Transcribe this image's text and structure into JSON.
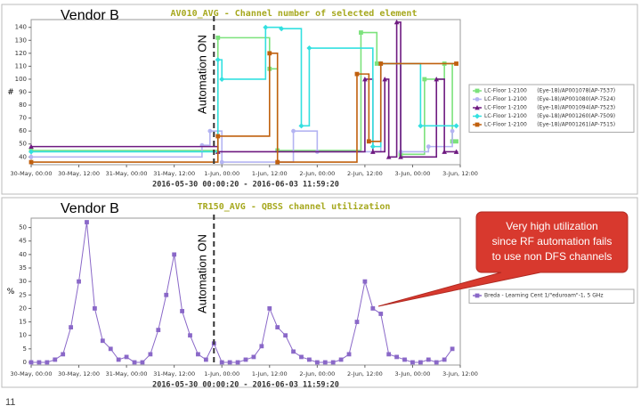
{
  "chart_data": [
    {
      "type": "line",
      "step": true,
      "title": "AV010_AVG - Channel number of selected element",
      "vendor": "Vendor B",
      "marker_label": "Automation ON",
      "marker_x": "31-May, 22:00",
      "xlabel": "2016-05-30 00:00:20 - 2016-06-03 11:59:20",
      "ylabel": "#",
      "xlim": [
        "30-May, 00:00",
        "3-Jun, 12:00"
      ],
      "xticks": [
        "30-May, 00:00",
        "30-May, 12:00",
        "31-May, 00:00",
        "31-May, 12:00",
        "1-Jun, 00:00",
        "1-Jun, 12:00",
        "2-Jun, 00:00",
        "2-Jun, 12:00",
        "3-Jun, 00:00",
        "3-Jun, 12:00"
      ],
      "ylim": [
        34,
        146
      ],
      "yticks": [
        40,
        50,
        60,
        70,
        80,
        90,
        100,
        110,
        120,
        130,
        140
      ],
      "grid": false,
      "series": [
        {
          "name": "LC-Floor 1-2100      (Eye-18)/AP001078(AP-7537)",
          "color": "#7ce27c",
          "marker": "square",
          "x": [
            "30-May, 00:00",
            "31-May, 23:00",
            "1-Jun, 12:00",
            "1-Jun, 14:00",
            "2-Jun, 11:00",
            "2-Jun, 15:00",
            "2-Jun, 21:00",
            "3-Jun, 03:00",
            "3-Jun, 08:00",
            "3-Jun, 10:00",
            "3-Jun, 11:00"
          ],
          "values": [
            45,
            132,
            108,
            45,
            136,
            112,
            42,
            100,
            112,
            52,
            52
          ]
        },
        {
          "name": "LC-Floor 1-2100      (Eye-18)/AP001080(AP-7524)",
          "color": "#b4b4f2",
          "marker": "circle",
          "x": [
            "30-May, 00:00",
            "31-May, 19:00",
            "31-May, 21:00",
            "1-Jun, 00:00",
            "1-Jun, 18:00",
            "2-Jun, 00:00",
            "2-Jun, 16:00",
            "2-Jun, 21:00",
            "3-Jun, 04:00",
            "3-Jun, 10:00"
          ],
          "values": [
            40,
            49,
            60,
            36,
            60,
            44,
            112,
            44,
            48,
            60
          ]
        },
        {
          "name": "LC-Floor 1-2100      (Eye-18)/AP001094(AP-7523)",
          "color": "#6e1a80",
          "marker": "triangle",
          "x": [
            "30-May, 00:00",
            "31-May, 23:00",
            "2-Jun, 12:00",
            "2-Jun, 14:00",
            "2-Jun, 17:00",
            "2-Jun, 18:00",
            "2-Jun, 20:00",
            "2-Jun, 21:00",
            "3-Jun, 06:00",
            "3-Jun, 08:00",
            "3-Jun, 11:00"
          ],
          "values": [
            48,
            44,
            100,
            44,
            100,
            40,
            144,
            40,
            100,
            44,
            44
          ]
        },
        {
          "name": "LC-Floor 1-2100      (Eye-18)/AP001260(AP-7509)",
          "color": "#33e0e0",
          "marker": "diamond",
          "x": [
            "30-May, 00:00",
            "31-May, 23:00",
            "1-Jun, 00:00",
            "1-Jun, 11:00",
            "1-Jun, 15:00",
            "1-Jun, 20:00",
            "1-Jun, 22:00",
            "2-Jun, 14:00",
            "2-Jun, 16:00",
            "3-Jun, 02:00",
            "3-Jun, 11:00"
          ],
          "values": [
            44,
            115,
            100,
            140,
            139,
            64,
            124,
            48,
            112,
            64,
            64
          ]
        },
        {
          "name": "LC-Floor 1-2100      (Eye-18)/AP001261(AP-7515)",
          "color": "#c0600e",
          "marker": "square",
          "x": [
            "30-May, 00:00",
            "31-May, 23:00",
            "1-Jun, 12:00",
            "1-Jun, 14:00",
            "2-Jun, 10:00",
            "2-Jun, 13:00",
            "2-Jun, 16:00",
            "3-Jun, 11:00"
          ],
          "values": [
            36,
            56,
            120,
            36,
            104,
            52,
            112,
            112
          ]
        }
      ]
    },
    {
      "type": "line",
      "step": false,
      "title": "TR150_AVG - QBSS channel utilization",
      "vendor": "Vendor B",
      "marker_label": "Automation ON",
      "marker_x": "31-May, 22:00",
      "xlabel": "2016-05-30 00:00:20 - 2016-06-03 11:59:20",
      "ylabel": "%",
      "callout": [
        "Very high utilization",
        "since RF automation fails",
        "to use non DFS channels"
      ],
      "xlim": [
        "30-May, 00:00",
        "3-Jun, 12:00"
      ],
      "xticks": [
        "30-May, 00:00",
        "30-May, 12:00",
        "31-May, 00:00",
        "31-May, 12:00",
        "1-Jun, 00:00",
        "1-Jun, 12:00",
        "2-Jun, 00:00",
        "2-Jun, 12:00",
        "3-Jun, 00:00",
        "3-Jun, 12:00"
      ],
      "ylim": [
        -1,
        53.5
      ],
      "yticks": [
        0,
        5,
        10,
        15,
        20,
        25,
        30,
        35,
        40,
        45,
        50
      ],
      "grid": false,
      "series": [
        {
          "name": "Breda - Learning Cent 1/\"eduroam\"-1, 5 GHz",
          "color": "#8a68c8",
          "marker": "square",
          "x": [
            "30-May, 00:00",
            "30-May, 02:00",
            "30-May, 04:00",
            "30-May, 06:00",
            "30-May, 08:00",
            "30-May, 10:00",
            "30-May, 12:00",
            "30-May, 14:00",
            "30-May, 16:00",
            "30-May, 18:00",
            "30-May, 20:00",
            "30-May, 22:00",
            "31-May, 00:00",
            "31-May, 02:00",
            "31-May, 04:00",
            "31-May, 06:00",
            "31-May, 08:00",
            "31-May, 10:00",
            "31-May, 12:00",
            "31-May, 14:00",
            "31-May, 16:00",
            "31-May, 18:00",
            "31-May, 20:00",
            "31-May, 22:00",
            "1-Jun, 00:00",
            "1-Jun, 02:00",
            "1-Jun, 04:00",
            "1-Jun, 06:00",
            "1-Jun, 08:00",
            "1-Jun, 10:00",
            "1-Jun, 12:00",
            "1-Jun, 14:00",
            "1-Jun, 16:00",
            "1-Jun, 18:00",
            "1-Jun, 20:00",
            "1-Jun, 22:00",
            "2-Jun, 00:00",
            "2-Jun, 02:00",
            "2-Jun, 04:00",
            "2-Jun, 06:00",
            "2-Jun, 08:00",
            "2-Jun, 10:00",
            "2-Jun, 12:00",
            "2-Jun, 14:00",
            "2-Jun, 16:00",
            "2-Jun, 18:00",
            "2-Jun, 20:00",
            "2-Jun, 22:00",
            "3-Jun, 00:00",
            "3-Jun, 02:00",
            "3-Jun, 04:00",
            "3-Jun, 06:00",
            "3-Jun, 08:00",
            "3-Jun, 10:00"
          ],
          "values": [
            0,
            0,
            0,
            1,
            3,
            13,
            30,
            52,
            20,
            8,
            5,
            1,
            2,
            0,
            0,
            3,
            12,
            25,
            40,
            19,
            10,
            3,
            1,
            7,
            0,
            0,
            0,
            1,
            2,
            6,
            20,
            13,
            10,
            4,
            2,
            1,
            0,
            0,
            0,
            1,
            3,
            15,
            30,
            20,
            18,
            3,
            2,
            1,
            0,
            0,
            1,
            0,
            1,
            5
          ]
        }
      ]
    }
  ],
  "slide": {
    "page_number": "11"
  }
}
